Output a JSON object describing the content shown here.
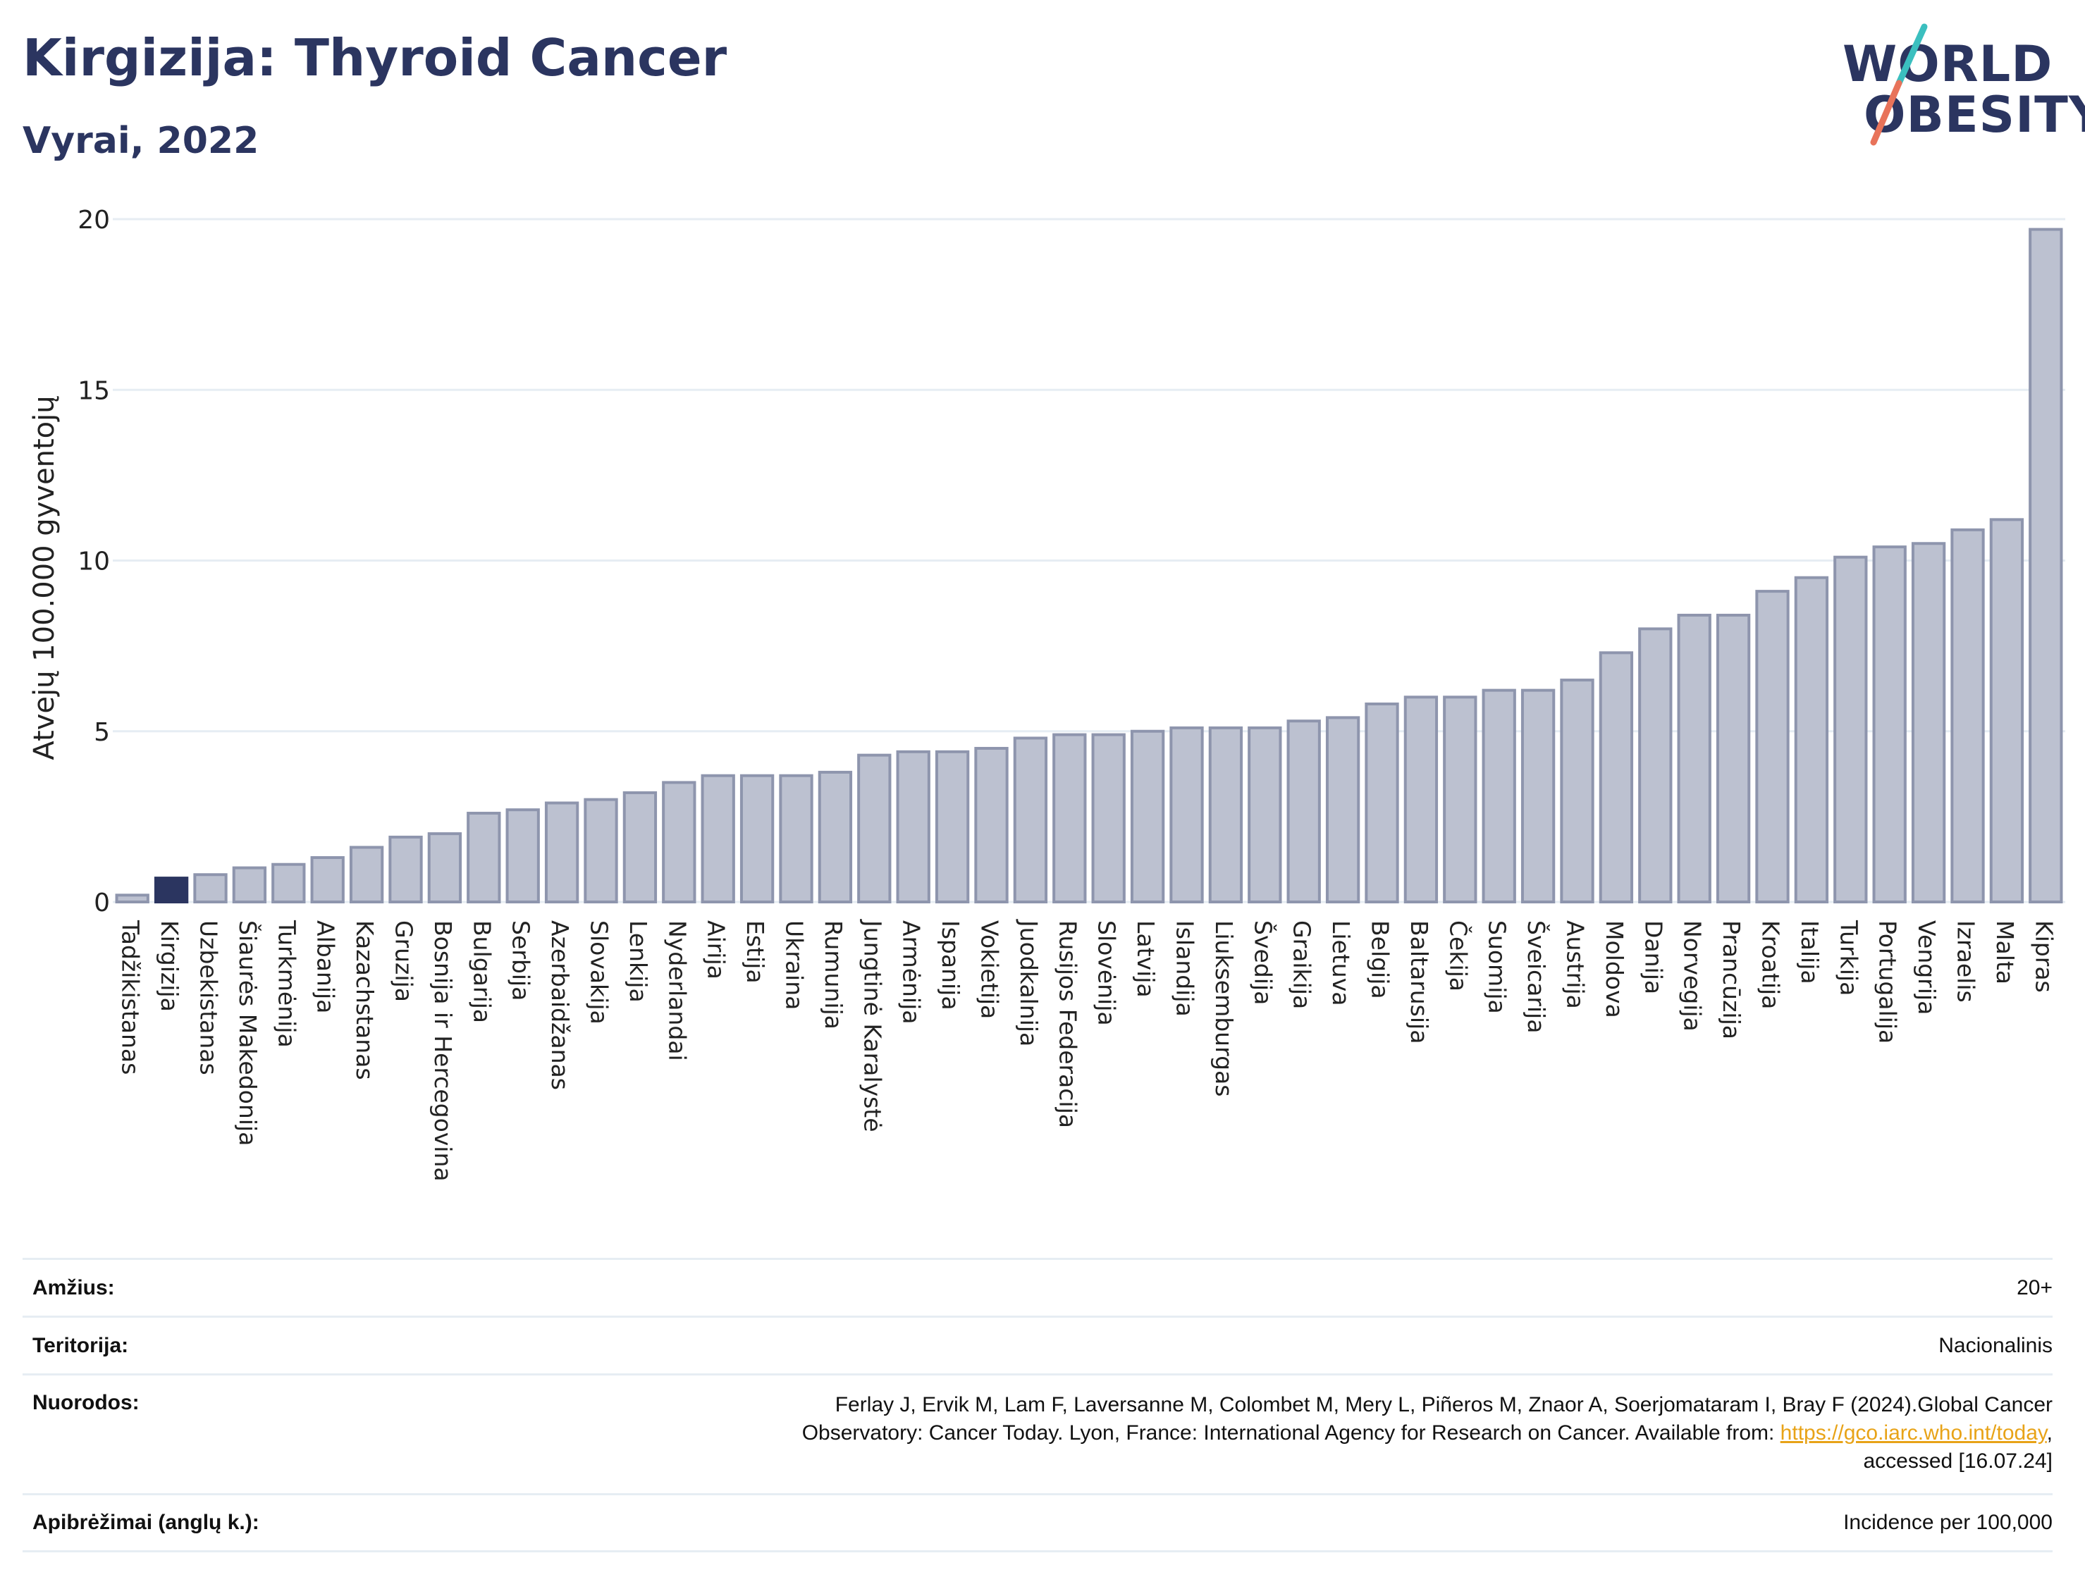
{
  "header": {
    "title": "Kirgizija: Thyroid Cancer",
    "subtitle": "Vyrai, 2022"
  },
  "logo": {
    "line1": "WORLD",
    "line2": "OBESITY",
    "colors": {
      "text": "#2b3560",
      "slash_top": "#3bbfbf",
      "slash_bottom": "#e8735a"
    }
  },
  "chart_data": {
    "type": "bar",
    "ylabel": "Atvejų 100.000 gyventojų",
    "ylim": [
      0,
      20
    ],
    "yticks": [
      0,
      5,
      10,
      15,
      20
    ],
    "grid": true,
    "highlight": "Kirgizija",
    "colors": {
      "bar": "#bcc1d0",
      "bar_stroke": "#8e95ad",
      "highlight": "#2b3560",
      "grid": "#e6edf3"
    },
    "categories": [
      "Tadžikistanas",
      "Kirgizija",
      "Uzbekistanas",
      "Šiaurės Makedonija",
      "Turkmėnija",
      "Albanija",
      "Kazachstanas",
      "Gruzija",
      "Bosnija ir Hercegovina",
      "Bulgarija",
      "Serbija",
      "Azerbaidžanas",
      "Slovakija",
      "Lenkija",
      "Nyderlandai",
      "Airija",
      "Estija",
      "Ukraina",
      "Rumunija",
      "Jungtinė Karalystė",
      "Armėnija",
      "Ispanija",
      "Vokietija",
      "Juodkalnija",
      "Rusijos Federacija",
      "Slovėnija",
      "Latvija",
      "Islandija",
      "Liuksemburgas",
      "Švedija",
      "Graikija",
      "Lietuva",
      "Belgija",
      "Baltarusija",
      "Čekija",
      "Suomija",
      "Šveicarija",
      "Austrija",
      "Moldova",
      "Danija",
      "Norvegija",
      "Prancūzija",
      "Kroatija",
      "Italija",
      "Turkija",
      "Portugalija",
      "Vengrija",
      "Izraelis",
      "Malta",
      "Kipras"
    ],
    "values": [
      0.2,
      0.7,
      0.8,
      1.0,
      1.1,
      1.3,
      1.6,
      1.9,
      2.0,
      2.6,
      2.7,
      2.9,
      3.0,
      3.2,
      3.5,
      3.7,
      3.7,
      3.7,
      3.8,
      4.3,
      4.4,
      4.4,
      4.5,
      4.8,
      4.9,
      4.9,
      5.0,
      5.1,
      5.1,
      5.1,
      5.3,
      5.4,
      5.8,
      6.0,
      6.0,
      6.2,
      6.2,
      6.5,
      7.3,
      8.0,
      8.4,
      8.4,
      9.1,
      9.5,
      10.1,
      10.4,
      10.5,
      10.9,
      11.2,
      19.7
    ]
  },
  "meta": {
    "age_label": "Amžius:",
    "age_value": "20+",
    "territory_label": "Teritorija:",
    "territory_value": "Nacionalinis",
    "refs_label": "Nuorodos:",
    "refs_line1": "Ferlay J, Ervik M, Lam F, Laversanne M, Colombet M, Mery L, Piñeros M, Znaor A, Soerjomataram I, Bray F (2024).Global Cancer",
    "refs_line2_pre": "Observatory: Cancer Today. Lyon, France: International Agency for Research on Cancer. Available from: ",
    "refs_link": "https://gco.iarc.who.int/today",
    "refs_line2_post": ",",
    "refs_line3": "accessed [16.07.24]",
    "defs_label": "Apibrėžimai (anglų k.):",
    "defs_value": "Incidence per 100,000"
  }
}
